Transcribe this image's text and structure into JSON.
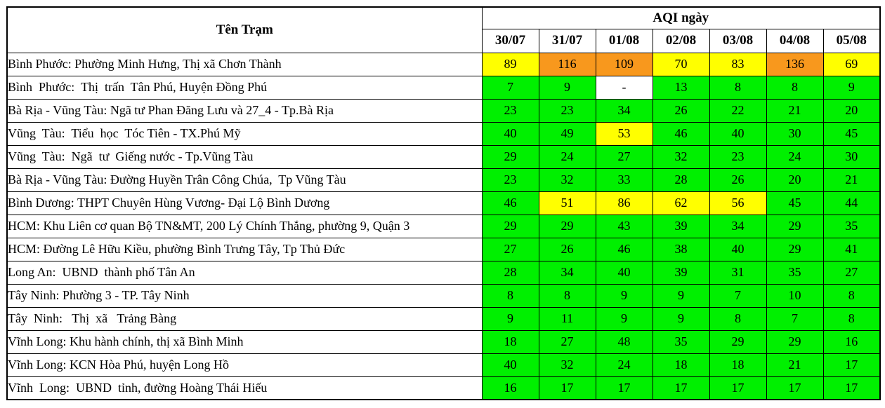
{
  "table": {
    "station_header": "Tên Trạm",
    "aqi_header": "AQI ngày",
    "dates": [
      "30/07",
      "31/07",
      "01/08",
      "02/08",
      "03/08",
      "04/08",
      "05/08"
    ],
    "rows": [
      {
        "station": "Bình Phước: Phường Minh Hưng, Thị xã Chơn Thành",
        "values": [
          "89",
          "116",
          "109",
          "70",
          "83",
          "136",
          "69"
        ],
        "levels": [
          "yellow",
          "orange",
          "orange",
          "yellow",
          "yellow",
          "orange",
          "yellow"
        ]
      },
      {
        "station": "Bình  Phước:  Thị  trấn  Tân Phú, Huyện Đồng Phú",
        "values": [
          "7",
          "9",
          "-",
          "13",
          "8",
          "8",
          "9"
        ],
        "levels": [
          "green",
          "green",
          "none",
          "green",
          "green",
          "green",
          "green"
        ]
      },
      {
        "station": "Bà Rịa - Vũng Tàu: Ngã tư Phan Đăng Lưu và 27_4 - Tp.Bà Rịa",
        "values": [
          "23",
          "23",
          "34",
          "26",
          "22",
          "21",
          "20"
        ],
        "levels": [
          "green",
          "green",
          "green",
          "green",
          "green",
          "green",
          "green"
        ]
      },
      {
        "station": "Vũng  Tàu:  Tiểu  học  Tóc Tiên - TX.Phú Mỹ",
        "values": [
          "40",
          "49",
          "53",
          "46",
          "40",
          "30",
          "45"
        ],
        "levels": [
          "green",
          "green",
          "yellow",
          "green",
          "green",
          "green",
          "green"
        ]
      },
      {
        "station": "Vũng  Tàu:  Ngã  tư  Giếng nước - Tp.Vũng Tàu",
        "values": [
          "29",
          "24",
          "27",
          "32",
          "23",
          "24",
          "30"
        ],
        "levels": [
          "green",
          "green",
          "green",
          "green",
          "green",
          "green",
          "green"
        ]
      },
      {
        "station": "Bà Rịa - Vũng Tàu: Đường Huyền Trân Công Chúa,  Tp Vũng Tàu",
        "values": [
          "23",
          "32",
          "33",
          "28",
          "26",
          "20",
          "21"
        ],
        "levels": [
          "green",
          "green",
          "green",
          "green",
          "green",
          "green",
          "green"
        ]
      },
      {
        "station": "Bình Dương: THPT Chuyên Hùng Vương- Đại Lộ Bình Dương",
        "values": [
          "46",
          "51",
          "86",
          "62",
          "56",
          "45",
          "44"
        ],
        "levels": [
          "green",
          "yellow",
          "yellow",
          "yellow",
          "yellow",
          "green",
          "green"
        ]
      },
      {
        "station": "HCM: Khu Liên cơ quan Bộ TN&MT, 200 Lý Chính Thắng, phường 9, Quận 3",
        "values": [
          "29",
          "29",
          "43",
          "39",
          "34",
          "29",
          "35"
        ],
        "levels": [
          "green",
          "green",
          "green",
          "green",
          "green",
          "green",
          "green"
        ]
      },
      {
        "station": "HCM: Đường Lê Hữu Kiều, phường Bình Trưng Tây, Tp Thủ Đức",
        "values": [
          "27",
          "26",
          "46",
          "38",
          "40",
          "29",
          "41"
        ],
        "levels": [
          "green",
          "green",
          "green",
          "green",
          "green",
          "green",
          "green"
        ]
      },
      {
        "station": "Long An:  UBND  thành phố Tân An",
        "values": [
          "28",
          "34",
          "40",
          "39",
          "31",
          "35",
          "27"
        ],
        "levels": [
          "green",
          "green",
          "green",
          "green",
          "green",
          "green",
          "green"
        ]
      },
      {
        "station": "Tây Ninh: Phường 3 - TP. Tây Ninh",
        "values": [
          "8",
          "8",
          "9",
          "9",
          "7",
          "10",
          "8"
        ],
        "levels": [
          "green",
          "green",
          "green",
          "green",
          "green",
          "green",
          "green"
        ]
      },
      {
        "station": "Tây  Ninh:   Thị  xã   Trảng Bàng",
        "values": [
          "9",
          "11",
          "9",
          "9",
          "8",
          "7",
          "8"
        ],
        "levels": [
          "green",
          "green",
          "green",
          "green",
          "green",
          "green",
          "green"
        ]
      },
      {
        "station": "Vĩnh Long: Khu hành chính, thị xã Bình Minh",
        "values": [
          "18",
          "27",
          "48",
          "35",
          "29",
          "29",
          "16"
        ],
        "levels": [
          "green",
          "green",
          "green",
          "green",
          "green",
          "green",
          "green"
        ]
      },
      {
        "station": "Vĩnh Long: KCN Hòa Phú, huyện Long Hồ",
        "values": [
          "40",
          "32",
          "24",
          "18",
          "18",
          "21",
          "17"
        ],
        "levels": [
          "green",
          "green",
          "green",
          "green",
          "green",
          "green",
          "green"
        ]
      },
      {
        "station": "Vĩnh  Long:  UBND  tỉnh, đường Hoàng Thái Hiếu",
        "values": [
          "16",
          "17",
          "17",
          "17",
          "17",
          "17",
          "17"
        ],
        "levels": [
          "green",
          "green",
          "green",
          "green",
          "green",
          "green",
          "green"
        ]
      }
    ]
  },
  "legend_colors": {
    "green": "#00F000",
    "yellow": "#FFFF00",
    "orange": "#F8981D",
    "none": "#FFFFFF"
  }
}
